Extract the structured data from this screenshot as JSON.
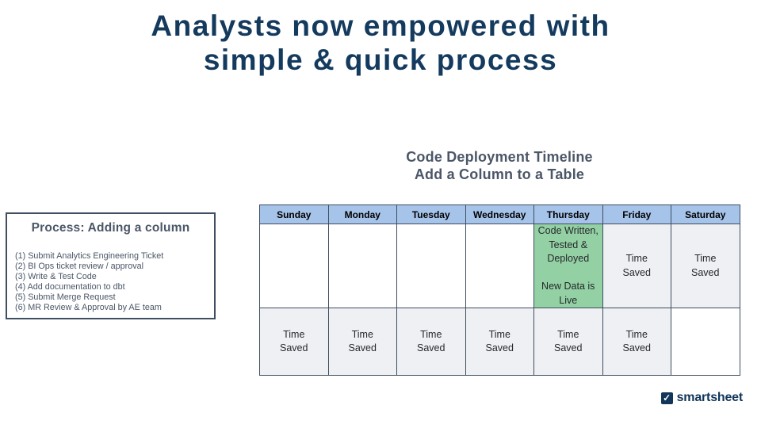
{
  "colors": {
    "title_navy": "#143a5e",
    "slate_text": "#4b5667",
    "box_border": "#3f4e61",
    "table_border": "#3f4e61",
    "header_blue": "#a6c3ea",
    "green_cell": "#93d1a4",
    "gray_cell": "#eef0f3",
    "logo_navy": "#12365a"
  },
  "slide": {
    "title_line1": "Analysts now empowered with",
    "title_line2": "simple & quick process"
  },
  "timeline": {
    "heading_line1": "Code Deployment Timeline",
    "heading_line2": "Add a Column to a Table",
    "days": [
      "Sunday",
      "Monday",
      "Tuesday",
      "Wednesday",
      "Thursday",
      "Friday",
      "Saturday"
    ],
    "week1": [
      {
        "text": "",
        "style": "plain"
      },
      {
        "text": "",
        "style": "plain"
      },
      {
        "text": "",
        "style": "plain"
      },
      {
        "text": "",
        "style": "plain"
      },
      {
        "text": "Code Written,\nTested &\nDeployed\n\nNew Data is\nLive",
        "style": "green"
      },
      {
        "text": "Time\nSaved",
        "style": "gray"
      },
      {
        "text": "Time\nSaved",
        "style": "gray"
      }
    ],
    "week2": [
      {
        "text": "Time\nSaved",
        "style": "gray"
      },
      {
        "text": "Time\nSaved",
        "style": "gray"
      },
      {
        "text": "Time\nSaved",
        "style": "gray"
      },
      {
        "text": "Time\nSaved",
        "style": "gray"
      },
      {
        "text": "Time\nSaved",
        "style": "gray"
      },
      {
        "text": "Time\nSaved",
        "style": "gray"
      },
      {
        "text": "",
        "style": "absent"
      }
    ]
  },
  "process_box": {
    "heading": "Process: Adding a column",
    "steps": [
      "(1) Submit Analytics Engineering Ticket",
      "(2) BI Ops ticket review / approval",
      "(3) Write & Test Code",
      "(4) Add documentation to dbt",
      "(5) Submit Merge Request",
      "(6) MR Review & Approval by AE team"
    ]
  },
  "logo": {
    "icon": "check-icon",
    "check_glyph": "✓",
    "text": "smartsheet"
  }
}
